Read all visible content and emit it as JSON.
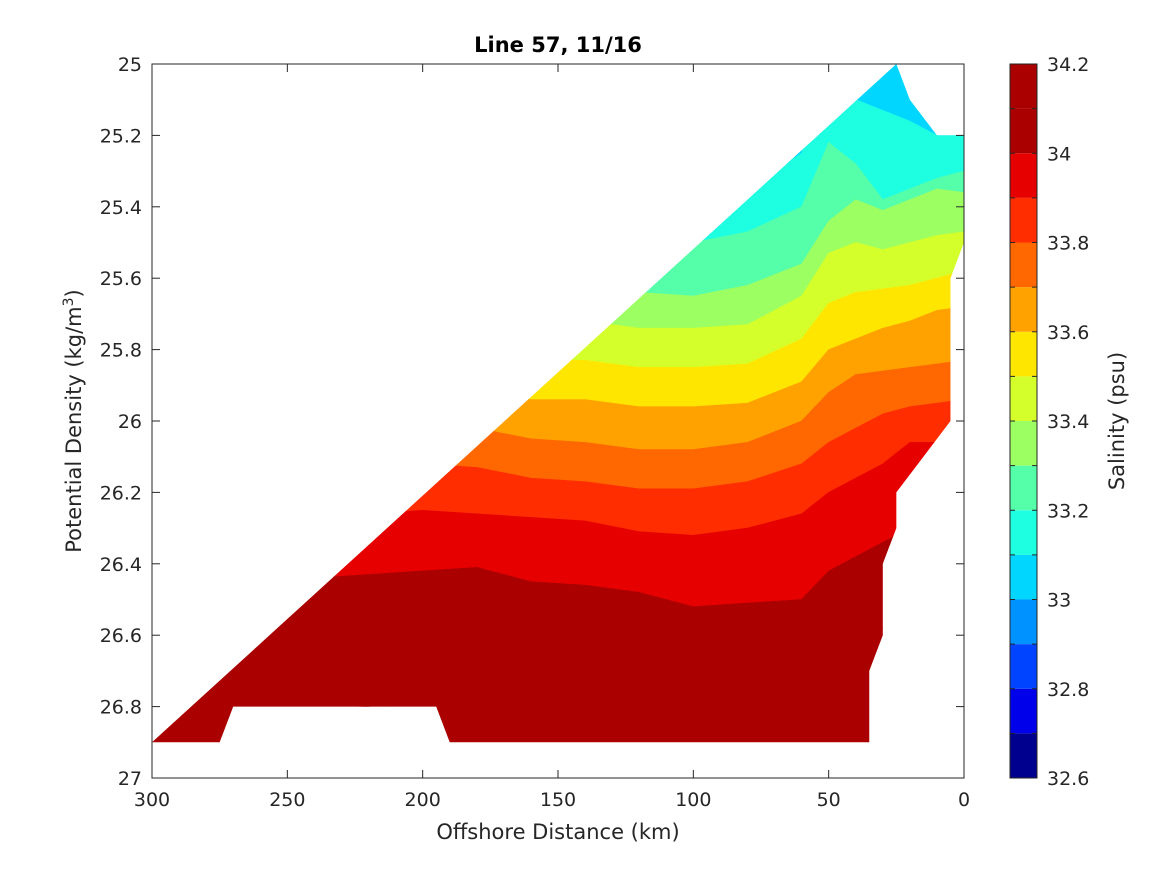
{
  "chart_data": {
    "type": "heatmap",
    "subtype": "filled-contour",
    "title": "Line 57, 11/16",
    "xlabel": "Offshore Distance (km)",
    "ylabel": "Potential Density (kg/m",
    "ylabel_superscript": "3",
    "ylabel_suffix": ")",
    "colorbar_label": "Salinity (psu)",
    "colormap": "jet",
    "x_reversed": true,
    "y_reversed": true,
    "xlim": [
      0,
      300
    ],
    "ylim": [
      25,
      27
    ],
    "x_ticks": [
      300,
      250,
      200,
      150,
      100,
      50,
      0
    ],
    "x_tick_labels": [
      "300",
      "250",
      "200",
      "150",
      "100",
      "50",
      "0"
    ],
    "y_ticks": [
      25,
      25.2,
      25.4,
      25.6,
      25.8,
      26,
      26.2,
      26.4,
      26.6,
      26.8,
      27
    ],
    "y_tick_labels": [
      "25",
      "25.2",
      "25.4",
      "25.6",
      "25.8",
      "26",
      "26.2",
      "26.4",
      "26.6",
      "26.8",
      "27"
    ],
    "color_levels": [
      32.6,
      32.7,
      32.8,
      32.9,
      33.0,
      33.1,
      33.2,
      33.3,
      33.4,
      33.5,
      33.6,
      33.7,
      33.8,
      33.9,
      34.0,
      34.1,
      34.2
    ],
    "colorbar_ticks": [
      32.6,
      32.8,
      33.0,
      33.2,
      33.4,
      33.6,
      33.8,
      34.0,
      34.2
    ],
    "colorbar_tick_labels": [
      "32.6",
      "32.8",
      "33",
      "33.2",
      "33.4",
      "33.6",
      "33.8",
      "34",
      "34.2"
    ],
    "level_colors": [
      "#00008f",
      "#0000ea",
      "#0044ff",
      "#0093ff",
      "#00d6ff",
      "#1effe1",
      "#55ffaa",
      "#9cff62",
      "#d4ff2b",
      "#ffe600",
      "#ffa200",
      "#ff6700",
      "#ff2d00",
      "#e60000",
      "#aa0000"
    ],
    "colorbar_colors": [
      "#00008f",
      "#0000ea",
      "#0044ff",
      "#0093ff",
      "#00d6ff",
      "#1effe1",
      "#55ffaa",
      "#9cff62",
      "#d4ff2b",
      "#ffe600",
      "#ffa200",
      "#ff6700",
      "#ff2d00",
      "#e60000",
      "#aa0000",
      "#aa0000"
    ],
    "x_nodes": [
      300,
      280,
      260,
      240,
      220,
      200,
      180,
      160,
      140,
      120,
      100,
      80,
      60,
      50,
      40,
      30,
      20,
      10,
      0
    ],
    "data_extent": {
      "x": [
        300,
        275,
        270,
        195,
        190,
        35,
        35,
        30,
        30,
        25,
        25,
        15,
        5,
        5,
        0,
        0,
        10,
        20,
        25
      ],
      "y": [
        26.9,
        26.9,
        26.8,
        26.8,
        26.9,
        26.9,
        26.7,
        26.6,
        26.4,
        26.3,
        26.2,
        26.1,
        26.0,
        25.6,
        25.5,
        25.2,
        25.2,
        25.1,
        25.0
      ]
    },
    "isopycnal_boundaries": [
      {
        "salinity": 32.8,
        "y": [
          24.96,
          24.97,
          25.05,
          25.08,
          25.07,
          25.04,
          25.02,
          24.98,
          24.96,
          24.95,
          24.94,
          24.94,
          24.94,
          24.94,
          24.94,
          24.94,
          24.94,
          24.94,
          24.94
        ]
      },
      {
        "salinity": 32.9,
        "y": [
          24.92,
          24.94,
          25.14,
          25.18,
          25.18,
          25.16,
          25.15,
          25.04,
          25.0,
          24.98,
          24.95,
          24.94,
          24.94,
          24.94,
          24.94,
          24.94,
          24.94,
          24.94,
          24.94
        ]
      },
      {
        "salinity": 33.0,
        "y": [
          24.94,
          24.97,
          25.16,
          25.27,
          25.24,
          25.22,
          25.24,
          25.16,
          25.08,
          25.19,
          25.2,
          25.1,
          25.0,
          24.94,
          24.94,
          24.94,
          24.94,
          24.94,
          24.94
        ]
      },
      {
        "salinity": 33.1,
        "y": [
          25.09,
          25.22,
          25.3,
          25.31,
          25.3,
          25.27,
          25.33,
          25.21,
          25.09,
          25.2,
          25.23,
          25.19,
          25.06,
          24.94,
          24.94,
          24.94,
          24.94,
          24.94,
          24.94
        ]
      },
      {
        "salinity": 33.2,
        "y": [
          25.27,
          25.35,
          25.39,
          25.4,
          25.38,
          25.36,
          25.4,
          25.38,
          25.35,
          25.38,
          25.38,
          25.35,
          25.25,
          25.05,
          25.1,
          25.13,
          25.16,
          25.2,
          25.2
        ]
      },
      {
        "salinity": 33.3,
        "y": [
          25.48,
          25.52,
          25.52,
          25.51,
          25.5,
          25.48,
          25.52,
          25.52,
          25.47,
          25.5,
          25.5,
          25.47,
          25.4,
          25.22,
          25.28,
          25.38,
          25.35,
          25.32,
          25.3
        ]
      },
      {
        "salinity": 33.4,
        "y": [
          25.6,
          25.61,
          25.61,
          25.61,
          25.59,
          25.57,
          25.6,
          25.62,
          25.62,
          25.64,
          25.65,
          25.62,
          25.56,
          25.44,
          25.38,
          25.41,
          25.38,
          25.35,
          25.36
        ]
      },
      {
        "salinity": 33.5,
        "y": [
          25.71,
          25.72,
          25.72,
          25.71,
          25.69,
          25.68,
          25.7,
          25.72,
          25.72,
          25.74,
          25.74,
          25.73,
          25.65,
          25.53,
          25.5,
          25.52,
          25.5,
          25.48,
          25.47
        ]
      },
      {
        "salinity": 33.6,
        "y": [
          25.83,
          25.84,
          25.82,
          25.81,
          25.79,
          25.78,
          25.8,
          25.83,
          25.83,
          25.85,
          25.85,
          25.84,
          25.77,
          25.67,
          25.64,
          25.63,
          25.62,
          25.6,
          25.58
        ]
      },
      {
        "salinity": 33.7,
        "y": [
          25.93,
          25.93,
          25.92,
          25.92,
          25.91,
          25.89,
          25.91,
          25.94,
          25.94,
          25.96,
          25.96,
          25.95,
          25.89,
          25.8,
          25.77,
          25.74,
          25.72,
          25.69,
          25.68
        ]
      },
      {
        "salinity": 33.8,
        "y": [
          26.05,
          26.04,
          26.04,
          26.03,
          26.02,
          26.01,
          26.02,
          26.05,
          26.06,
          26.08,
          26.08,
          26.06,
          26.0,
          25.92,
          25.87,
          25.86,
          25.85,
          25.84,
          25.83
        ]
      },
      {
        "salinity": 33.9,
        "y": [
          26.17,
          26.16,
          26.15,
          26.14,
          26.13,
          26.12,
          26.13,
          26.16,
          26.17,
          26.19,
          26.19,
          26.17,
          26.12,
          26.06,
          26.02,
          25.98,
          25.96,
          25.95,
          25.94
        ]
      },
      {
        "salinity": 34.0,
        "y": [
          26.28,
          26.27,
          26.26,
          26.26,
          26.26,
          26.25,
          26.26,
          26.27,
          26.28,
          26.31,
          26.32,
          26.3,
          26.26,
          26.2,
          26.16,
          26.12,
          26.06,
          26.06,
          26.06
        ]
      },
      {
        "salinity": 34.1,
        "y": [
          26.47,
          26.46,
          26.44,
          26.44,
          26.43,
          26.42,
          26.41,
          26.45,
          26.46,
          26.48,
          26.52,
          26.51,
          26.5,
          26.42,
          26.38,
          26.34,
          26.3,
          26.3,
          26.3
        ]
      },
      {
        "salinity": 34.2,
        "y": [
          26.85,
          26.84,
          26.81,
          26.81,
          26.8,
          26.78,
          26.76,
          26.78,
          26.8,
          26.82,
          26.84,
          26.85,
          26.82,
          26.72,
          26.6,
          26.58,
          26.56,
          26.56,
          26.56
        ]
      }
    ]
  }
}
